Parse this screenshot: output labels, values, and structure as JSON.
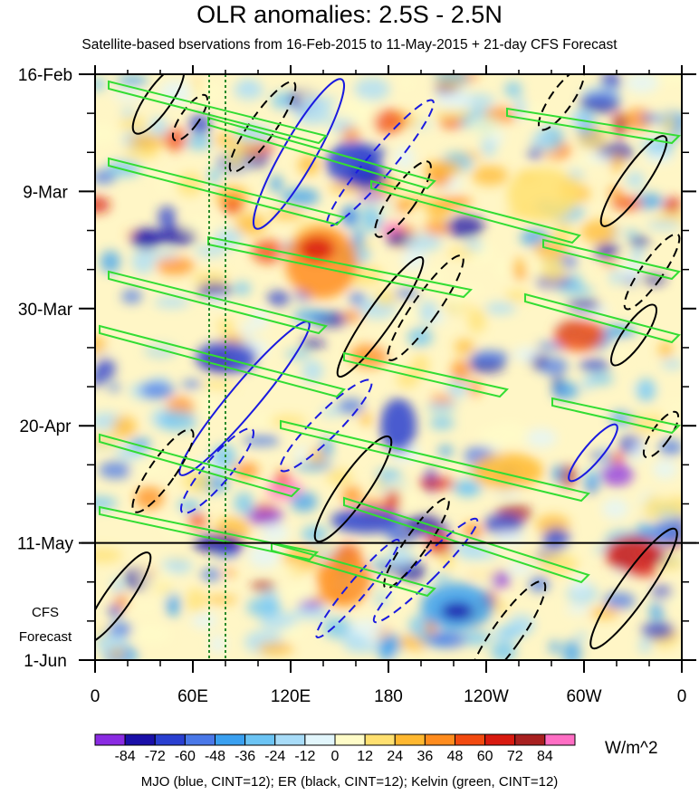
{
  "chart_data": {
    "type": "heatmap",
    "title": "OLR anomalies: 2.5S - 2.5N",
    "subtitle": "Satellite-based bservations from 16-Feb-2015 to 11-May-2015 + 21-day CFS Forecast",
    "x_tick_labels": [
      "0",
      "60E",
      "120E",
      "180",
      "120W",
      "60W",
      "0"
    ],
    "x_ticks_deg_east": [
      0,
      60,
      120,
      180,
      240,
      300,
      360
    ],
    "xlim": [
      0,
      360
    ],
    "y_tick_labels": [
      "16-Feb",
      "9-Mar",
      "30-Mar",
      "20-Apr",
      "11-May",
      "1-Jun"
    ],
    "y_ticks": [
      "2015-02-16",
      "2015-03-09",
      "2015-03-30",
      "2015-04-20",
      "2015-05-11",
      "2015-06-01"
    ],
    "ylim": [
      "2015-02-16",
      "2015-06-01"
    ],
    "y_reversed": true,
    "observation_end": "2015-05-11",
    "forecast_label_line1": "CFS",
    "forecast_label_line2": "Forecast",
    "reference_lon_lines": [
      70,
      80
    ],
    "colorbar": {
      "levels": [
        -84,
        -72,
        -60,
        -48,
        -36,
        -24,
        -12,
        0,
        12,
        24,
        36,
        48,
        60,
        72,
        84
      ],
      "level_labels": [
        "-84",
        "-72",
        "-60",
        "-48",
        "-36",
        "-24",
        "-12",
        "0",
        "12",
        "24",
        "36",
        "48",
        "60",
        "72",
        "84"
      ],
      "colors": [
        "#8a2be2",
        "#1a0fa8",
        "#2a3fd0",
        "#4a78e8",
        "#3aa0f0",
        "#6cc4f4",
        "#a8dcf8",
        "#e2f6fc",
        "#fffcc8",
        "#ffe070",
        "#ffb830",
        "#ff8c1e",
        "#f24a10",
        "#d81a10",
        "#a82020",
        "#ff6ec4"
      ],
      "units": "W/m^2"
    },
    "footer": "MJO (blue, CINT=12); ER (black, CINT=12); Kelvin (green, CINT=12)"
  }
}
